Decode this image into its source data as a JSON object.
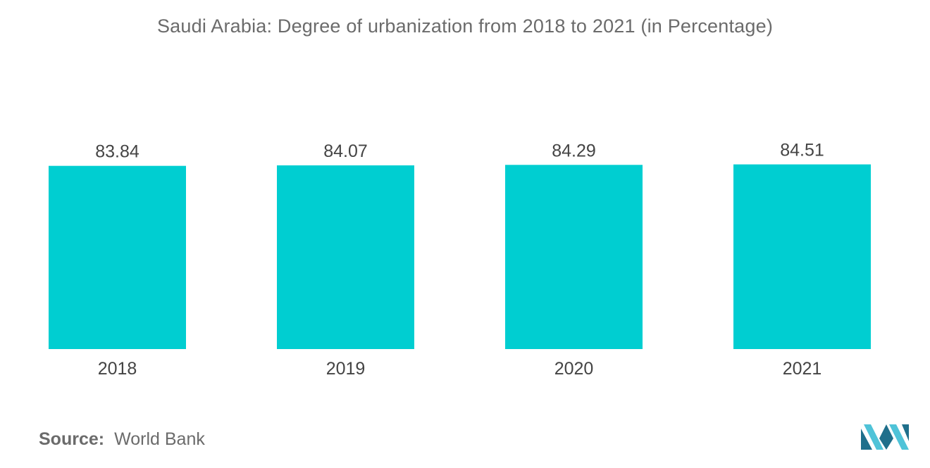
{
  "colors": {
    "bar": "#00ced1",
    "text": "#444444",
    "title": "#6b6b6b",
    "logo_dark": "#1f6f8b",
    "logo_light": "#4fc3d8"
  },
  "chart_data": {
    "type": "bar",
    "title": "Saudi Arabia: Degree of urbanization from 2018 to 2021 (in Percentage)",
    "categories": [
      "2018",
      "2019",
      "2020",
      "2021"
    ],
    "values": [
      83.84,
      84.07,
      84.29,
      84.51
    ],
    "data_labels": [
      "83.84",
      "84.07",
      "84.29",
      "84.51"
    ],
    "xlabel": "",
    "ylabel": "",
    "ylim": [
      0,
      85
    ],
    "grid": false,
    "legend": "none"
  },
  "source": {
    "label": "Source:",
    "value": "World Bank"
  },
  "logo": {
    "icon": "mordor-intelligence-logo-icon"
  }
}
